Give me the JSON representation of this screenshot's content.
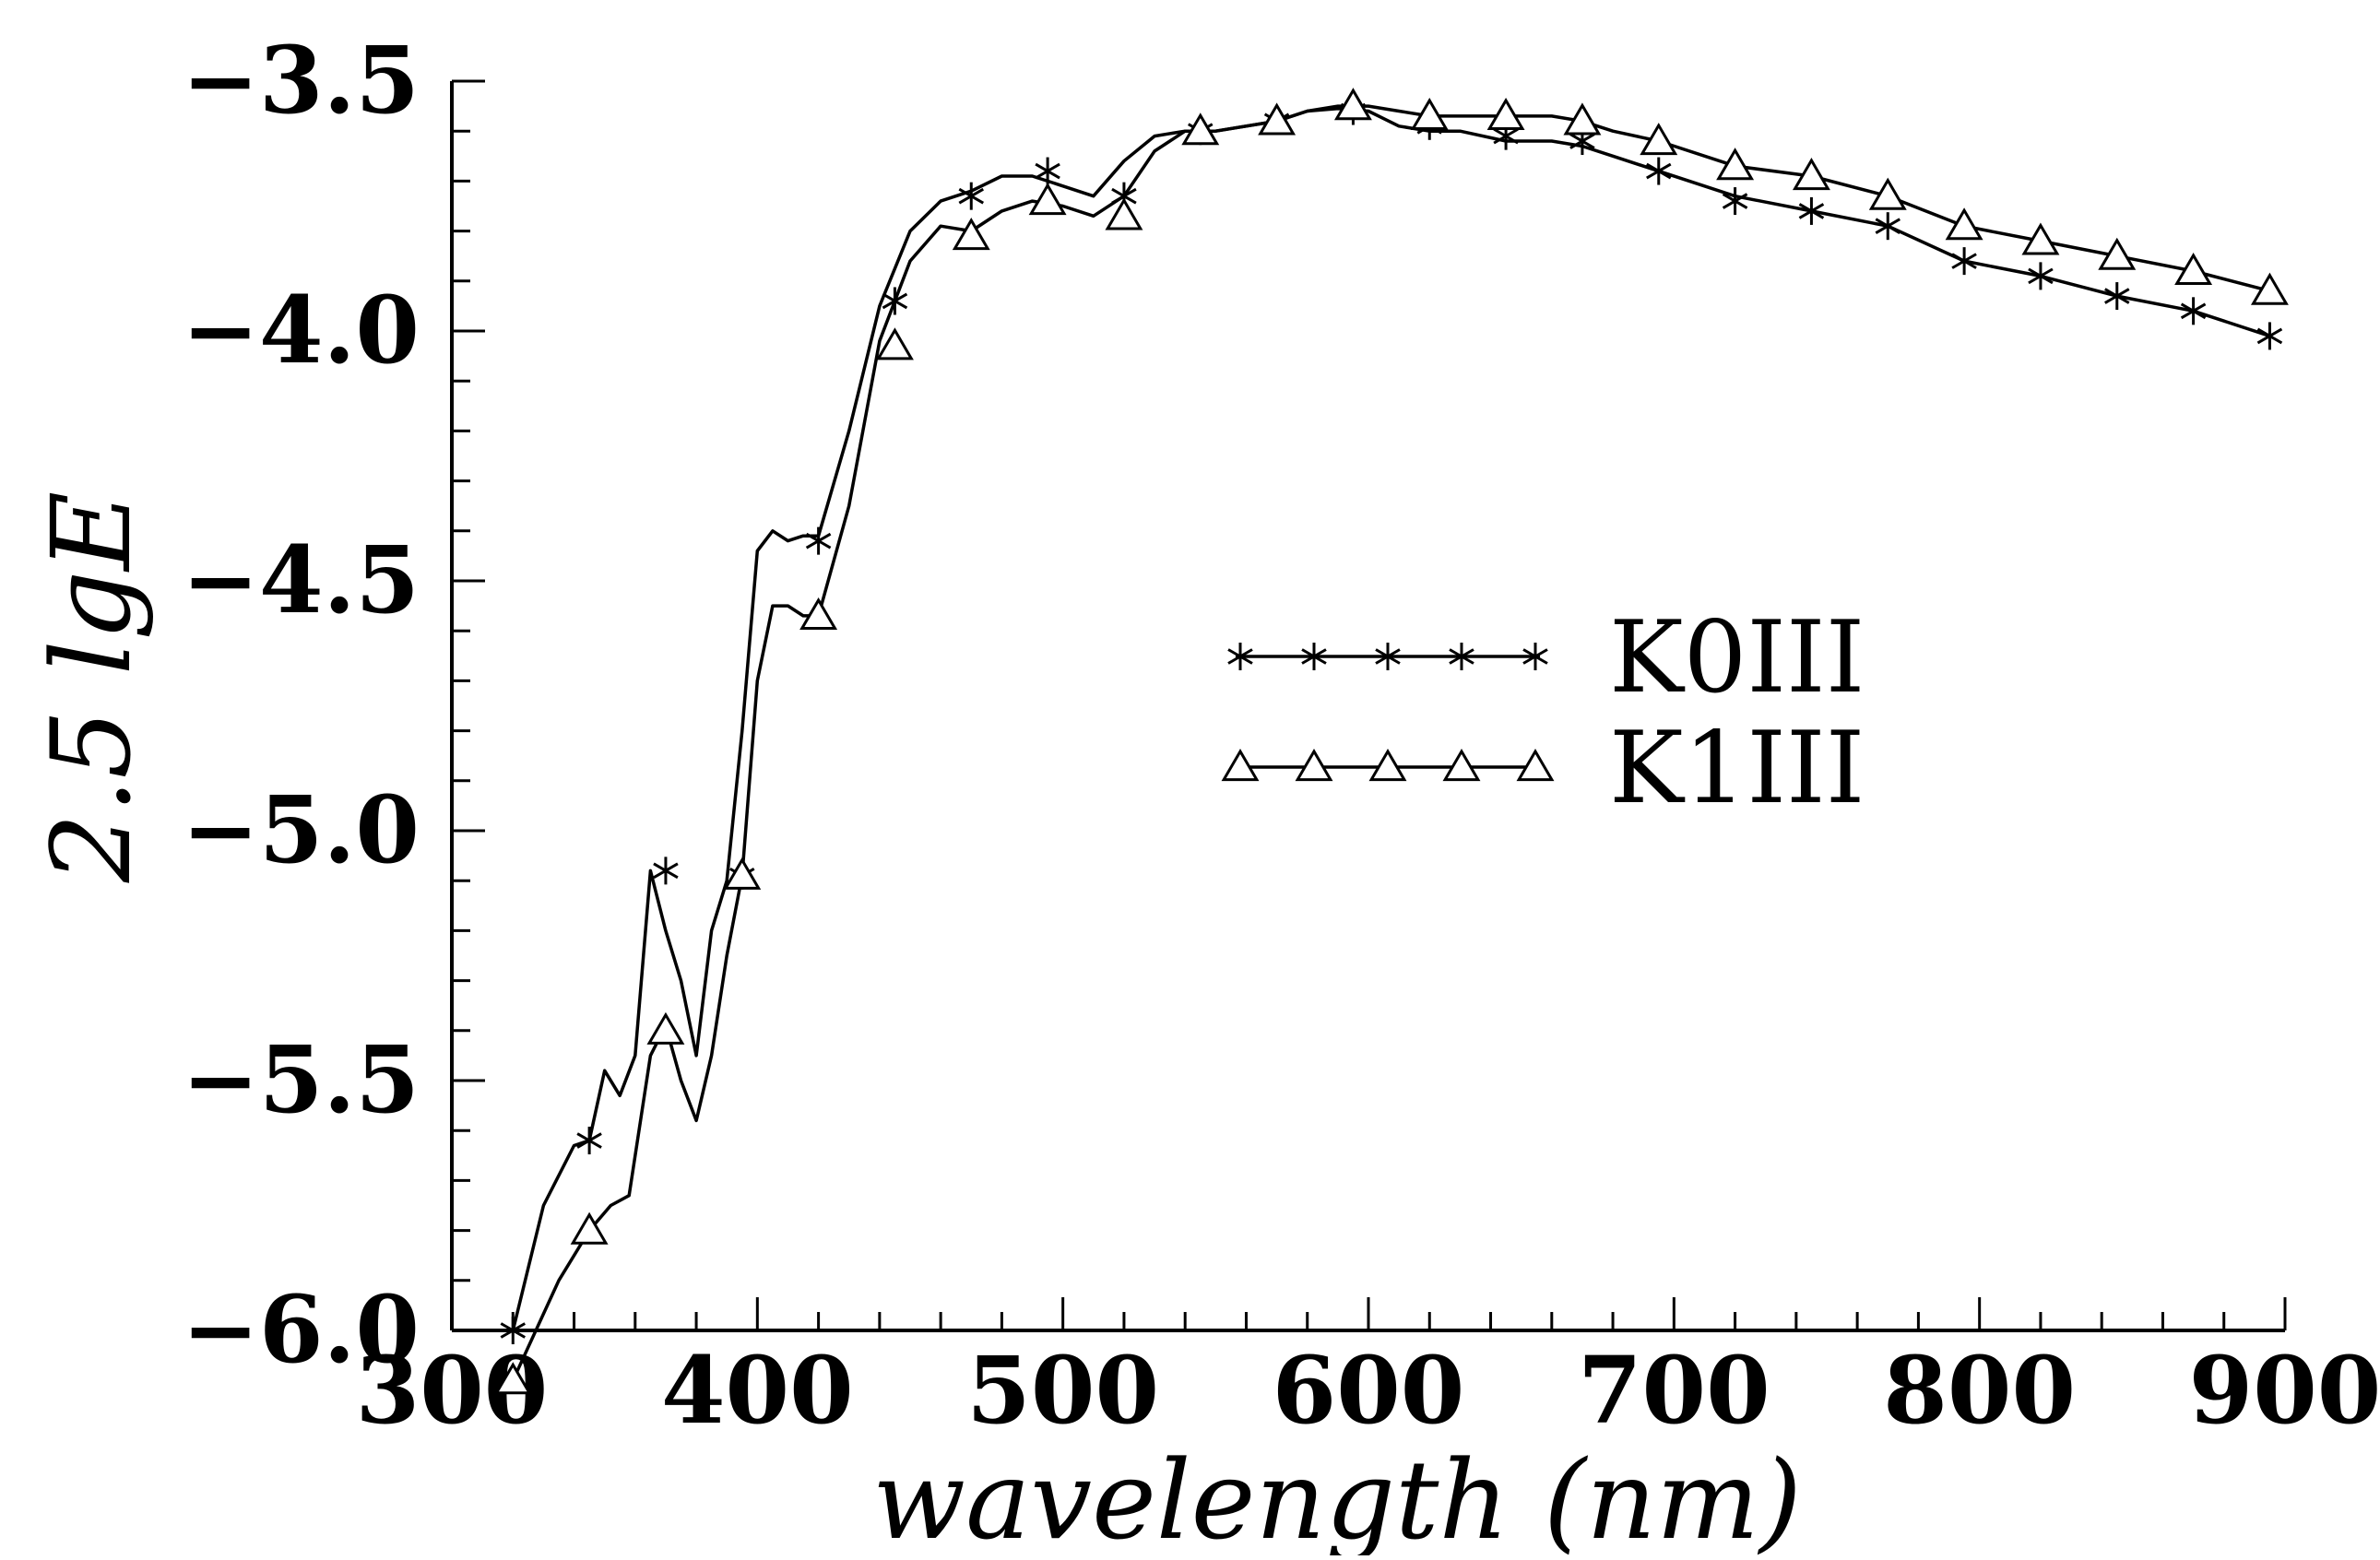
{
  "chart_data": {
    "type": "line",
    "title": "",
    "xlabel": "wavelength (nm)",
    "ylabel": "2.5 lgE",
    "xlim": [
      300,
      900
    ],
    "ylim": [
      -6.0,
      -3.5
    ],
    "x_ticks": [
      "300",
      "400",
      "500",
      "600",
      "700",
      "800",
      "900"
    ],
    "y_ticks": [
      "−3.5",
      "−4.0",
      "−4.5",
      "−5.0",
      "−5.5",
      "−6.0"
    ],
    "x_tick_values": [
      300,
      400,
      500,
      600,
      700,
      800,
      900
    ],
    "y_tick_values": [
      -3.5,
      -4.0,
      -4.5,
      -5.0,
      -5.5,
      -6.0
    ],
    "grid": false,
    "legend_position": "center-right",
    "series": [
      {
        "name": "K0III",
        "marker": "asterisk",
        "color": "#000000",
        "x": [
          320,
          330,
          340,
          345,
          350,
          355,
          360,
          365,
          370,
          375,
          380,
          385,
          390,
          395,
          400,
          405,
          410,
          415,
          420,
          430,
          440,
          450,
          460,
          470,
          480,
          490,
          500,
          510,
          520,
          530,
          540,
          550,
          570,
          580,
          590,
          600,
          610,
          620,
          630,
          645,
          660,
          670,
          680,
          695,
          720,
          745,
          770,
          795,
          820,
          845,
          870,
          895
        ],
        "y": [
          -6.0,
          -5.75,
          -5.63,
          -5.62,
          -5.48,
          -5.53,
          -5.45,
          -5.08,
          -5.2,
          -5.3,
          -5.45,
          -5.2,
          -5.1,
          -4.8,
          -4.44,
          -4.4,
          -4.42,
          -4.41,
          -4.41,
          -4.2,
          -3.95,
          -3.8,
          -3.74,
          -3.72,
          -3.69,
          -3.69,
          -3.71,
          -3.73,
          -3.66,
          -3.61,
          -3.6,
          -3.6,
          -3.58,
          -3.56,
          -3.555,
          -3.56,
          -3.59,
          -3.6,
          -3.6,
          -3.62,
          -3.62,
          -3.63,
          -3.65,
          -3.68,
          -3.73,
          -3.76,
          -3.79,
          -3.86,
          -3.89,
          -3.93,
          -3.96,
          -4.01
        ],
        "marker_x": [
          320,
          345,
          370,
          395,
          420,
          445,
          470,
          495,
          520,
          545,
          570,
          595,
          620,
          645,
          670,
          695,
          720,
          745,
          770,
          795,
          820,
          845,
          870,
          895
        ],
        "marker_y": [
          -6.0,
          -5.62,
          -5.08,
          -5.09,
          -4.42,
          -3.94,
          -3.73,
          -3.68,
          -3.73,
          -3.6,
          -3.58,
          -3.56,
          -3.59,
          -3.61,
          -3.62,
          -3.68,
          -3.74,
          -3.76,
          -3.79,
          -3.86,
          -3.89,
          -3.93,
          -3.96,
          -4.01
        ]
      },
      {
        "name": "K1III",
        "marker": "triangle",
        "color": "#000000",
        "x": [
          320,
          335,
          345,
          352,
          358,
          365,
          370,
          375,
          380,
          385,
          390,
          395,
          400,
          405,
          410,
          415,
          420,
          430,
          440,
          450,
          460,
          470,
          480,
          490,
          500,
          510,
          520,
          530,
          540,
          550,
          570,
          580,
          590,
          600,
          610,
          620,
          630,
          645,
          660,
          670,
          680,
          695,
          720,
          745,
          770,
          795,
          820,
          845,
          870,
          895
        ],
        "y": [
          -6.1,
          -5.9,
          -5.8,
          -5.75,
          -5.73,
          -5.45,
          -5.39,
          -5.5,
          -5.58,
          -5.45,
          -5.25,
          -5.09,
          -4.7,
          -4.55,
          -4.55,
          -4.57,
          -4.57,
          -4.35,
          -4.02,
          -3.86,
          -3.79,
          -3.8,
          -3.76,
          -3.74,
          -3.75,
          -3.77,
          -3.73,
          -3.64,
          -3.6,
          -3.6,
          -3.58,
          -3.56,
          -3.55,
          -3.55,
          -3.56,
          -3.57,
          -3.57,
          -3.57,
          -3.57,
          -3.58,
          -3.6,
          -3.62,
          -3.67,
          -3.69,
          -3.73,
          -3.79,
          -3.82,
          -3.85,
          -3.88,
          -3.92
        ],
        "marker_x": [
          320,
          345,
          370,
          395,
          420,
          445,
          470,
          495,
          520,
          545,
          570,
          595,
          620,
          645,
          670,
          695,
          720,
          745,
          770,
          795,
          820,
          845,
          870,
          895
        ],
        "marker_y": [
          -6.1,
          -5.8,
          -5.4,
          -5.09,
          -4.57,
          -4.03,
          -3.81,
          -3.74,
          -3.77,
          -3.6,
          -3.58,
          -3.55,
          -3.57,
          -3.57,
          -3.58,
          -3.62,
          -3.67,
          -3.69,
          -3.73,
          -3.79,
          -3.82,
          -3.85,
          -3.88,
          -3.92
        ]
      }
    ]
  }
}
